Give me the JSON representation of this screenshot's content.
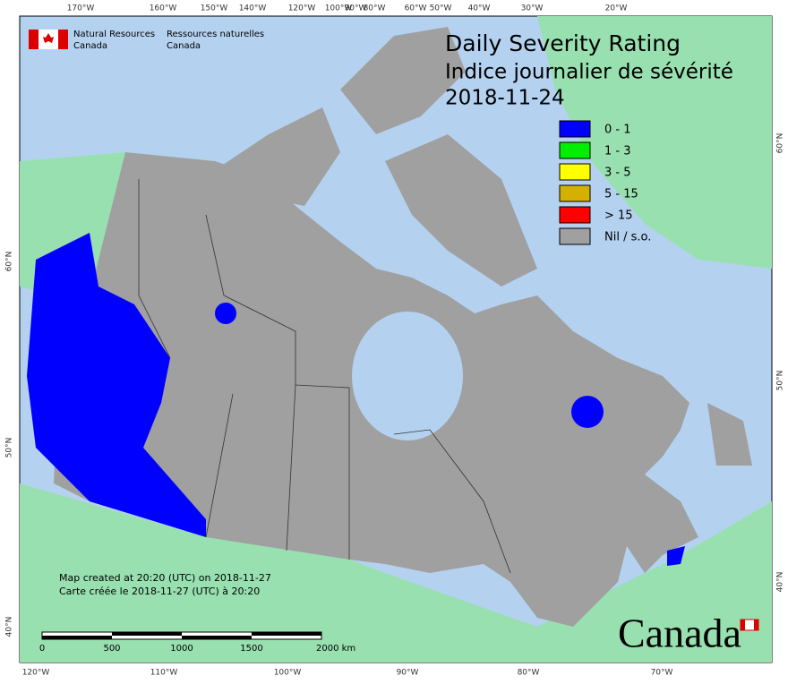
{
  "header": {
    "agency_en": [
      "Natural Resources",
      "Canada"
    ],
    "agency_fr": [
      "Ressources naturelles",
      "Canada"
    ]
  },
  "title": [
    "Daily Severity Rating",
    "Indice journalier de sévérité",
    "2018-11-24"
  ],
  "legend": [
    {
      "label": "0 - 1",
      "color": "#0000ff"
    },
    {
      "label": "1 - 3",
      "color": "#00ee00"
    },
    {
      "label": "3 - 5",
      "color": "#ffff00"
    },
    {
      "label": "5 - 15",
      "color": "#d4b000"
    },
    {
      "label": "> 15",
      "color": "#ff0000"
    },
    {
      "label": "Nil / s.o.",
      "color": "#a0a0a0"
    }
  ],
  "top_labels": [
    "170°W",
    "160°W",
    "150°W",
    "140°W",
    "120°W",
    "100°W",
    "90°W",
    "80°W",
    "60°W",
    "50°W",
    "40°W",
    "30°W",
    "20°W"
  ],
  "bottom_labels": [
    "120°W",
    "110°W",
    "100°W",
    "90°W",
    "80°W",
    "70°W"
  ],
  "left_labels": [
    "60°N",
    "50°N",
    "40°N"
  ],
  "right_labels": [
    "60°N",
    "50°N",
    "40°N"
  ],
  "footer": [
    "Map created at 20:20 (UTC) on 2018-11-27",
    "Carte créée le 2018-11-27 (UTC) à 20:20"
  ],
  "scale": {
    "labels": [
      "0",
      "500",
      "1000",
      "1500",
      "2000  km"
    ]
  },
  "wordmark": "Canada"
}
